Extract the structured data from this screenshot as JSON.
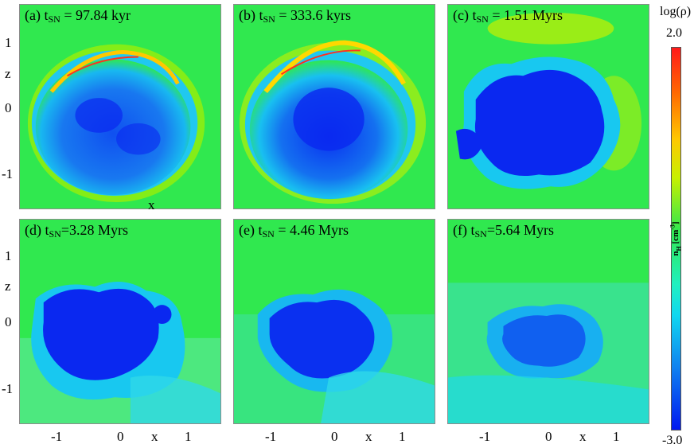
{
  "panels": [
    {
      "label_prefix": "(a) t",
      "label_sub": "SN",
      "label_suffix": " = 97.84 kyr",
      "bubble": "large-shell"
    },
    {
      "label_prefix": "(b) t",
      "label_sub": "SN",
      "label_suffix": " = 333.6 kyrs",
      "bubble": "large-shell"
    },
    {
      "label_prefix": "(c) t",
      "label_sub": "SN",
      "label_suffix": " = 1.51 Myrs",
      "bubble": "deep-cavity"
    },
    {
      "label_prefix": "(d) t",
      "label_sub": "SN",
      "label_suffix": "=3.28 Myrs",
      "bubble": "deep-cavity"
    },
    {
      "label_prefix": "(e) t",
      "label_sub": "SN",
      "label_suffix": " = 4.46 Myrs",
      "bubble": "mixed"
    },
    {
      "label_prefix": "(f) t",
      "label_sub": "SN",
      "label_suffix": "=5.64 Myrs",
      "bubble": "faded"
    }
  ],
  "axes": {
    "z_label": "z",
    "x_label": "x",
    "x_label_top_panel": "x",
    "y_ticks": [
      "1",
      "0",
      "-1"
    ],
    "x_ticks": [
      "-1",
      "0",
      "1"
    ]
  },
  "colorbar": {
    "title": "log(ρ)",
    "max": "2.0",
    "min": "-3.0",
    "unit_main": "n",
    "unit_sub": "H",
    "unit_rest": " [cm",
    "unit_sup": "-3",
    "unit_end": "]"
  },
  "colors": {
    "ambient_green": "#30e84f",
    "cavity_blue": "#0a28f0",
    "mixed_cyan": "#20d8e8",
    "shell_yellow": "#e8e800",
    "shell_red": "#ff2020"
  }
}
